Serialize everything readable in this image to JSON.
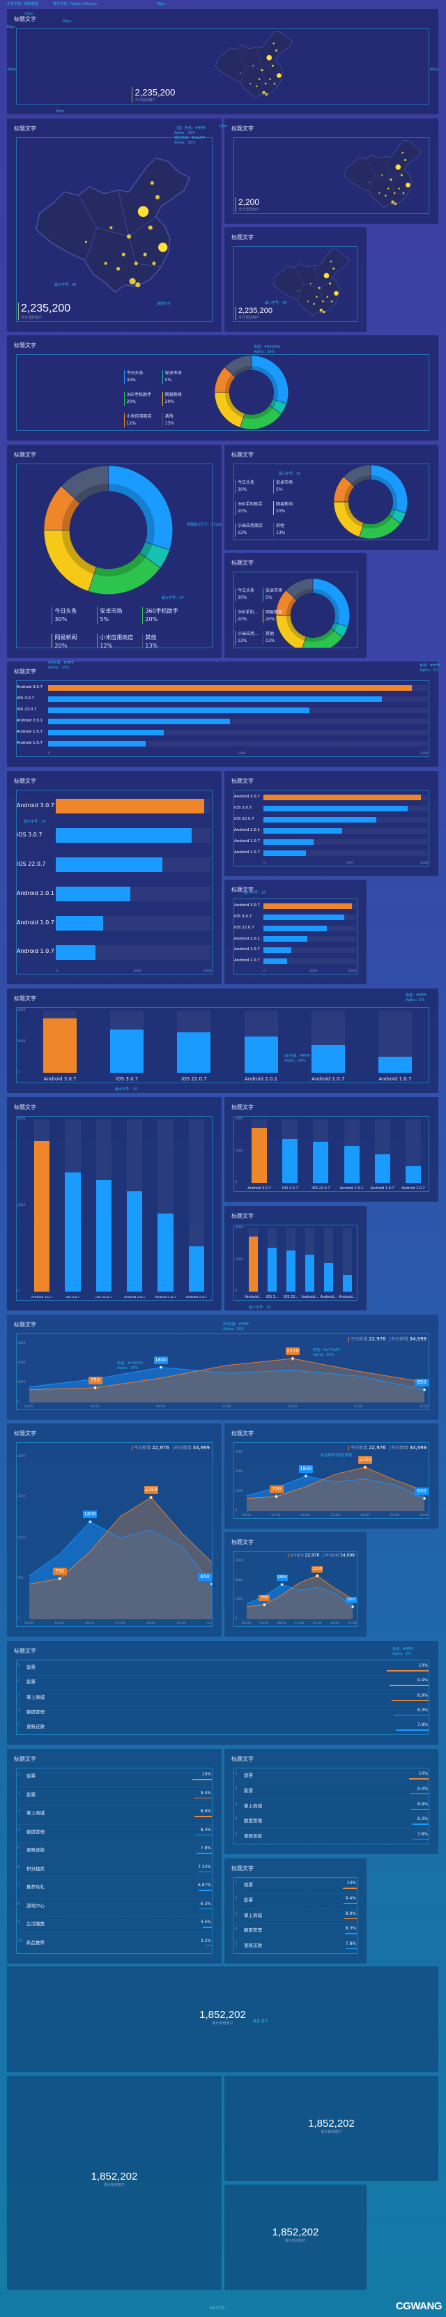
{
  "card_title": "标题文字",
  "header": {
    "font_cn": "中文字体：微软雅黑",
    "font_en": "英文字体：Roboto Regular"
  },
  "annotations": [
    "40px",
    "30px",
    "80px",
    "30px",
    "40px",
    "40px",
    "40px",
    "12px",
    "（蓝）色值：#ffffff\nAlpha：30%\n描边色值：#bbdfff\nAlpha：30%",
    "最大字号：48",
    "底部对齐",
    "最小字号：40",
    "色值：#000000\nAlpha：20%",
    "饼图最大尺寸：532px",
    "最大字号：24",
    "最小字号：20",
    "(B)色值：#ffffff\nAlpha：10%",
    "色值：#ffffff\nAlpha：5%",
    "最大字号：24",
    "最小字号：18",
    "色值：#ffffff\nAlpha：5%",
    "(B)色值：#ffffff\nAlpha：10%",
    "最大字号：24",
    "最小字号：18",
    "(B)色值：#ffffff\nAlpha：10%",
    "色值：#1491fd\nAlpha：30%",
    "色值：#e77e29\nAlpha：30%",
    "标注最高不超过表格",
    "色值：#ffffff\nAlpha：2%",
    "垂直 居中"
  ],
  "map": {
    "values": [
      "2,235,200",
      "2,235,200",
      "2,200",
      "2,235,200"
    ],
    "label": "今日活跃用户",
    "dot_color": "#ffe033"
  },
  "donut": {
    "segments": [
      {
        "name": "今日头条",
        "pct": "30%",
        "value": 30,
        "color": "#1a9bff"
      },
      {
        "name": "安卓市场",
        "pct": "5%",
        "value": 5,
        "color": "#15c2b0"
      },
      {
        "name": "360手机助手",
        "pct": "20%",
        "value": 20,
        "color": "#2cc44c"
      },
      {
        "name": "网易新闻",
        "pct": "20%",
        "value": 20,
        "color": "#f6c818"
      },
      {
        "name": "小米应用商店",
        "pct": "12%",
        "value": 12,
        "color": "#f0862a"
      },
      {
        "name": "其他",
        "pct": "13%",
        "value": 13,
        "color": "#4d5a78"
      }
    ],
    "short_names": [
      "今日头条",
      "安卓市场",
      "360手机...",
      "网易新闻",
      "小米应用...",
      "其他"
    ]
  },
  "chart_data": [
    {
      "type": "bar",
      "orientation": "horizontal",
      "categories": [
        "Android 3.0.7",
        "iOS 3.0.7",
        "iOS 22.0.7",
        "Android 2.0.1",
        "Android 1.0.7",
        "Android 1.0.7"
      ],
      "values": [
        1920,
        1760,
        1380,
        960,
        610,
        515
      ],
      "xlim": [
        0,
        2000
      ],
      "ticks": [
        "0",
        "1000",
        "2000"
      ],
      "highlight_color": "#f0862a",
      "bar_color": "#1a9bff"
    },
    {
      "type": "bar",
      "orientation": "vertical",
      "categories": [
        "Android 3.0.7",
        "iOS 3.0.7",
        "iOS 22.0.7",
        "Android 2.0.1",
        "Android 1.0.7",
        "Android 1.0.7"
      ],
      "short_categories": [
        "Android...",
        "iOS 3...",
        "iOS 22...",
        "Android...",
        "Android...",
        "Android..."
      ],
      "values": [
        1745,
        1386,
        1297,
        1166,
        903,
        524
      ],
      "ylim": [
        0,
        2000
      ],
      "ticks": [
        "0",
        "1000",
        "2000"
      ],
      "highlight_color": "#f0862a",
      "bar_color": "#1a9bff"
    },
    {
      "type": "area",
      "x": [
        "00:00",
        "04:00",
        "08:00",
        "12:00",
        "16:00",
        "20:00",
        "24:00"
      ],
      "ylim": [
        0,
        3000
      ],
      "ticks": [
        "0",
        "1000",
        "2000",
        "3000"
      ],
      "ticks_tall": [
        "0",
        "750",
        "1500",
        "2250",
        "3000"
      ],
      "series": [
        {
          "name": "今日新增",
          "total": "22,976",
          "color": "#e77e29",
          "values": [
            650,
            750,
            1250,
            1900,
            2250,
            1600,
            1050
          ]
        },
        {
          "name": "昨日新增",
          "total": "34,999",
          "color": "#1491fd",
          "values": [
            800,
            1200,
            1800,
            1500,
            1650,
            1350,
            650
          ]
        }
      ],
      "data_labels": [
        {
          "series": 0,
          "index": 1,
          "text": "750"
        },
        {
          "series": 1,
          "index": 2,
          "text": "1800"
        },
        {
          "series": 0,
          "index": 4,
          "text": "2250"
        },
        {
          "series": 1,
          "index": 6,
          "text": "650"
        }
      ]
    }
  ],
  "ranking": {
    "items": [
      {
        "rank": "1",
        "name": "饭票",
        "pct": "10%",
        "value": 10
      },
      {
        "rank": "2",
        "name": "影票",
        "pct": "9.4%",
        "value": 9.4
      },
      {
        "rank": "3",
        "name": "掌上商城",
        "pct": "8.9%",
        "value": 8.9
      },
      {
        "rank": "4",
        "name": "额度管理",
        "pct": "8.3%",
        "value": 8.3
      },
      {
        "rank": "5",
        "name": "查账还款",
        "pct": "7.8%",
        "value": 7.8
      },
      {
        "rank": "6",
        "name": "积分抽奖",
        "pct": "7.32%",
        "value": 7.32
      },
      {
        "rank": "7",
        "name": "推荐有礼",
        "pct": "6.87%",
        "value": 6.87
      },
      {
        "rank": "8",
        "name": "游戏中心",
        "pct": "6.3%",
        "value": 6.3
      },
      {
        "rank": "9",
        "name": "生活缴费",
        "pct": "4.5%",
        "value": 4.5
      },
      {
        "rank": "10",
        "name": "新品推荐",
        "pct": "3.2%",
        "value": 3.2
      }
    ],
    "top_color": "#e8863a",
    "rest_color": "#1a9bff"
  },
  "stat": {
    "value": "1,852,202",
    "label": "累计新增用户"
  },
  "footer": {
    "logo": "ui-cn",
    "watermark": "CGWANG"
  }
}
